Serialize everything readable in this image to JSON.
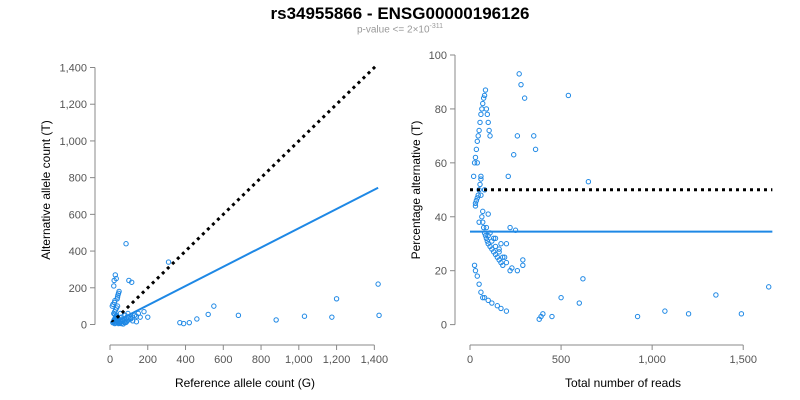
{
  "header": {
    "title": "rs34955866 - ENSG00000196126",
    "subtitle_prefix": "p-value <= 2",
    "subtitle_times": "×",
    "subtitle_base": "10",
    "subtitle_exp": "-311"
  },
  "colors": {
    "points": "#1e88e5",
    "fit": "#1e88e5",
    "reference": "#000000",
    "axis": "#888888"
  },
  "chart_data": [
    {
      "type": "scatter",
      "xlabel": "Reference allele count (G)",
      "ylabel": "Alternative allele count (T)",
      "xlim": [
        0,
        1430
      ],
      "ylim": [
        -30,
        1430
      ],
      "xticks": [
        0,
        200,
        400,
        600,
        800,
        1000,
        1200,
        1400
      ],
      "xtick_labels": [
        "0",
        "200",
        "400",
        "600",
        "800",
        "1,000",
        "1,200",
        "1,400"
      ],
      "yticks": [
        0,
        200,
        400,
        600,
        800,
        1000,
        1200,
        1400
      ],
      "ytick_labels": [
        "0",
        "200",
        "400",
        "600",
        "800",
        "1,000",
        "1,200",
        "1,400"
      ],
      "lines": [
        {
          "name": "expected (dotted)",
          "style": "dotted",
          "x": [
            10,
            1410
          ],
          "y": [
            10,
            1410
          ]
        },
        {
          "name": "fit",
          "style": "solid",
          "x": [
            10,
            1420
          ],
          "y": [
            5,
            745
          ]
        }
      ],
      "points": {
        "x": [
          15,
          18,
          20,
          22,
          25,
          28,
          30,
          32,
          35,
          12,
          16,
          24,
          26,
          38,
          40,
          42,
          45,
          20,
          22,
          28,
          33,
          48,
          55,
          60,
          65,
          70,
          75,
          80,
          85,
          90,
          95,
          100,
          110,
          120,
          130,
          140,
          150,
          160,
          180,
          200,
          25,
          30,
          35,
          40,
          45,
          50,
          55,
          60,
          20,
          25,
          30,
          35,
          40,
          85,
          100,
          115,
          90,
          110,
          310,
          420,
          460,
          520,
          550,
          680,
          880,
          1030,
          1175,
          1200,
          1420,
          1425,
          60,
          70,
          25,
          30,
          40,
          35,
          45,
          50,
          370,
          390,
          120,
          140,
          80,
          95
        ],
        "y": [
          10,
          15,
          20,
          25,
          30,
          35,
          40,
          45,
          50,
          100,
          110,
          120,
          130,
          140,
          150,
          160,
          170,
          210,
          240,
          270,
          250,
          180,
          60,
          40,
          30,
          20,
          15,
          10,
          12,
          18,
          25,
          35,
          30,
          40,
          50,
          45,
          60,
          40,
          70,
          40,
          5,
          8,
          12,
          15,
          5,
          8,
          10,
          15,
          60,
          70,
          80,
          90,
          100,
          440,
          240,
          230,
          40,
          35,
          340,
          10,
          30,
          55,
          100,
          50,
          25,
          45,
          40,
          140,
          220,
          50,
          5,
          3,
          55,
          45,
          35,
          25,
          20,
          15,
          10,
          5,
          20,
          15,
          50,
          60
        ]
      }
    },
    {
      "type": "scatter",
      "xlabel": "Total number of reads",
      "ylabel": "Percentage alternative (T)",
      "xlim": [
        0,
        1680
      ],
      "ylim": [
        -2,
        100
      ],
      "xticks": [
        0,
        500,
        1000,
        1500
      ],
      "xtick_labels": [
        "0",
        "500",
        "1,000",
        "1,500"
      ],
      "yticks": [
        0,
        20,
        40,
        60,
        80,
        100
      ],
      "ytick_labels": [
        "0",
        "20",
        "40",
        "60",
        "80",
        "100"
      ],
      "lines": [
        {
          "name": "expected 50% (dotted)",
          "style": "dotted",
          "x": [
            0,
            1660
          ],
          "y": [
            50,
            50
          ]
        },
        {
          "name": "observed mean",
          "style": "solid",
          "x": [
            0,
            1660
          ],
          "y": [
            34.5,
            34.5
          ]
        }
      ],
      "points": {
        "x": [
          20,
          25,
          30,
          35,
          40,
          45,
          50,
          55,
          60,
          65,
          70,
          75,
          80,
          85,
          90,
          95,
          100,
          105,
          110,
          30,
          35,
          40,
          45,
          50,
          55,
          60,
          65,
          70,
          75,
          80,
          85,
          90,
          95,
          100,
          110,
          120,
          130,
          140,
          150,
          160,
          170,
          180,
          200,
          220,
          250,
          270,
          280,
          300,
          25,
          30,
          40,
          50,
          60,
          70,
          80,
          100,
          120,
          150,
          170,
          200,
          210,
          240,
          260,
          290,
          40,
          60,
          80,
          100,
          130,
          160,
          190,
          220,
          350,
          360,
          380,
          390,
          400,
          450,
          500,
          540,
          600,
          620,
          650,
          920,
          1070,
          1200,
          1350,
          1490,
          1640,
          100,
          120,
          140,
          160,
          180,
          200,
          230,
          260,
          290,
          50,
          70,
          90,
          110,
          140,
          170,
          30,
          60
        ],
        "y": [
          55,
          60,
          62,
          65,
          68,
          70,
          72,
          75,
          78,
          80,
          82,
          84,
          85,
          87,
          80,
          78,
          75,
          72,
          70,
          45,
          46,
          47,
          48,
          50,
          52,
          54,
          40,
          38,
          36,
          34,
          33,
          32,
          31,
          30,
          29,
          28,
          27,
          26,
          25,
          24,
          23,
          22,
          30,
          36,
          35,
          93,
          89,
          84,
          22,
          20,
          18,
          15,
          12,
          10,
          10,
          9,
          8,
          7,
          6,
          5,
          55,
          63,
          70,
          24,
          60,
          55,
          50,
          41,
          32,
          28,
          25,
          20,
          70,
          65,
          2,
          3,
          4,
          3,
          10,
          85,
          8,
          17,
          53,
          3,
          5,
          4,
          11,
          4,
          14,
          33,
          31,
          29,
          27,
          25,
          23,
          21,
          20,
          22,
          38,
          42,
          36,
          34,
          32,
          30,
          44,
          48
        ]
      }
    }
  ]
}
